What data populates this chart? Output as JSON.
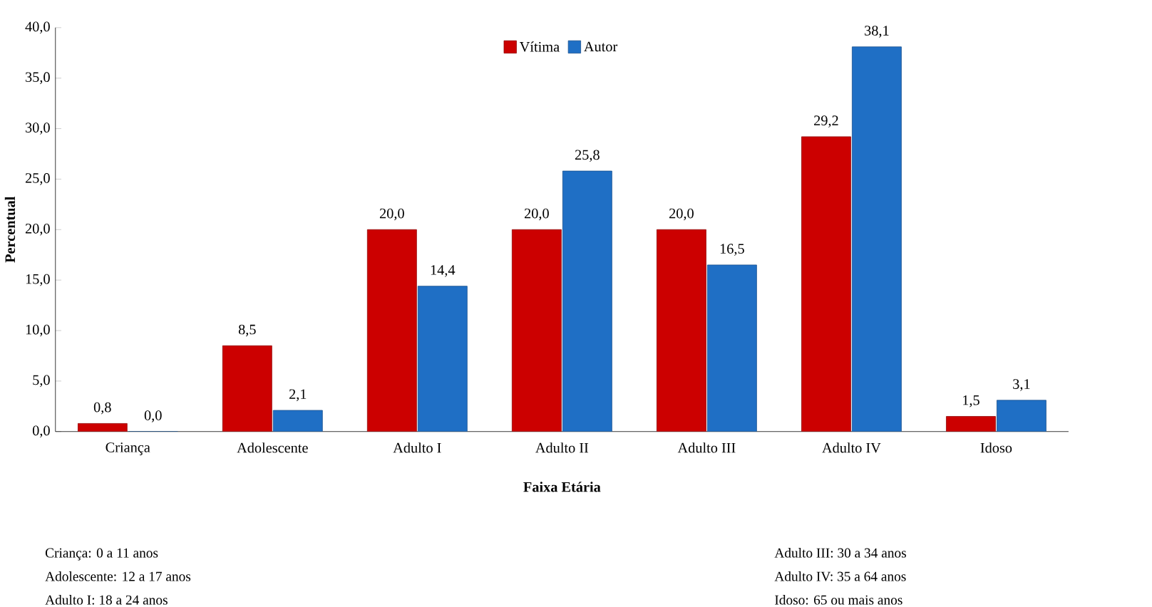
{
  "chart_data": {
    "type": "bar",
    "xlabel": "Faixa Etária",
    "ylabel": "Percentual",
    "categories": [
      "Criança",
      "Adolescente",
      "Adulto I",
      "Adulto II",
      "Adulto III",
      "Adulto IV",
      "Idoso"
    ],
    "series": [
      {
        "name": "Vítima",
        "color": "#cc0000",
        "values": [
          0.8,
          8.5,
          20.0,
          20.0,
          20.0,
          29.2,
          1.5
        ],
        "value_labels": [
          "0,8",
          "8,5",
          "20,0",
          "20,0",
          "20,0",
          "29,2",
          "1,5"
        ]
      },
      {
        "name": "Autor",
        "color": "#1f6fc5",
        "values": [
          0.0,
          2.1,
          14.4,
          25.8,
          16.5,
          38.1,
          3.1
        ],
        "value_labels": [
          "0,0",
          "2,1",
          "14,4",
          "25,8",
          "16,5",
          "38,1",
          "3,1"
        ]
      }
    ],
    "ylim": [
      0,
      40
    ],
    "yticks": [
      {
        "value": 0,
        "label": "0,0"
      },
      {
        "value": 5,
        "label": "5,0"
      },
      {
        "value": 10,
        "label": "10,0"
      },
      {
        "value": 15,
        "label": "15,0"
      },
      {
        "value": 20,
        "label": "20,0"
      },
      {
        "value": 25,
        "label": "25,0"
      },
      {
        "value": 30,
        "label": "30,0"
      },
      {
        "value": 35,
        "label": "35,0"
      },
      {
        "value": 40,
        "label": "40,0"
      }
    ],
    "legend": "top",
    "annotations": [
      "Criança: 0 a 11 anos",
      "Adolescente: 12 a 17 anos",
      "Adulto I: 18 a 24 anos",
      "Adulto III: 30 a 34 anos",
      "Adulto IV: 35 a 64 anos",
      "Idoso: 65 ou mais anos"
    ]
  }
}
